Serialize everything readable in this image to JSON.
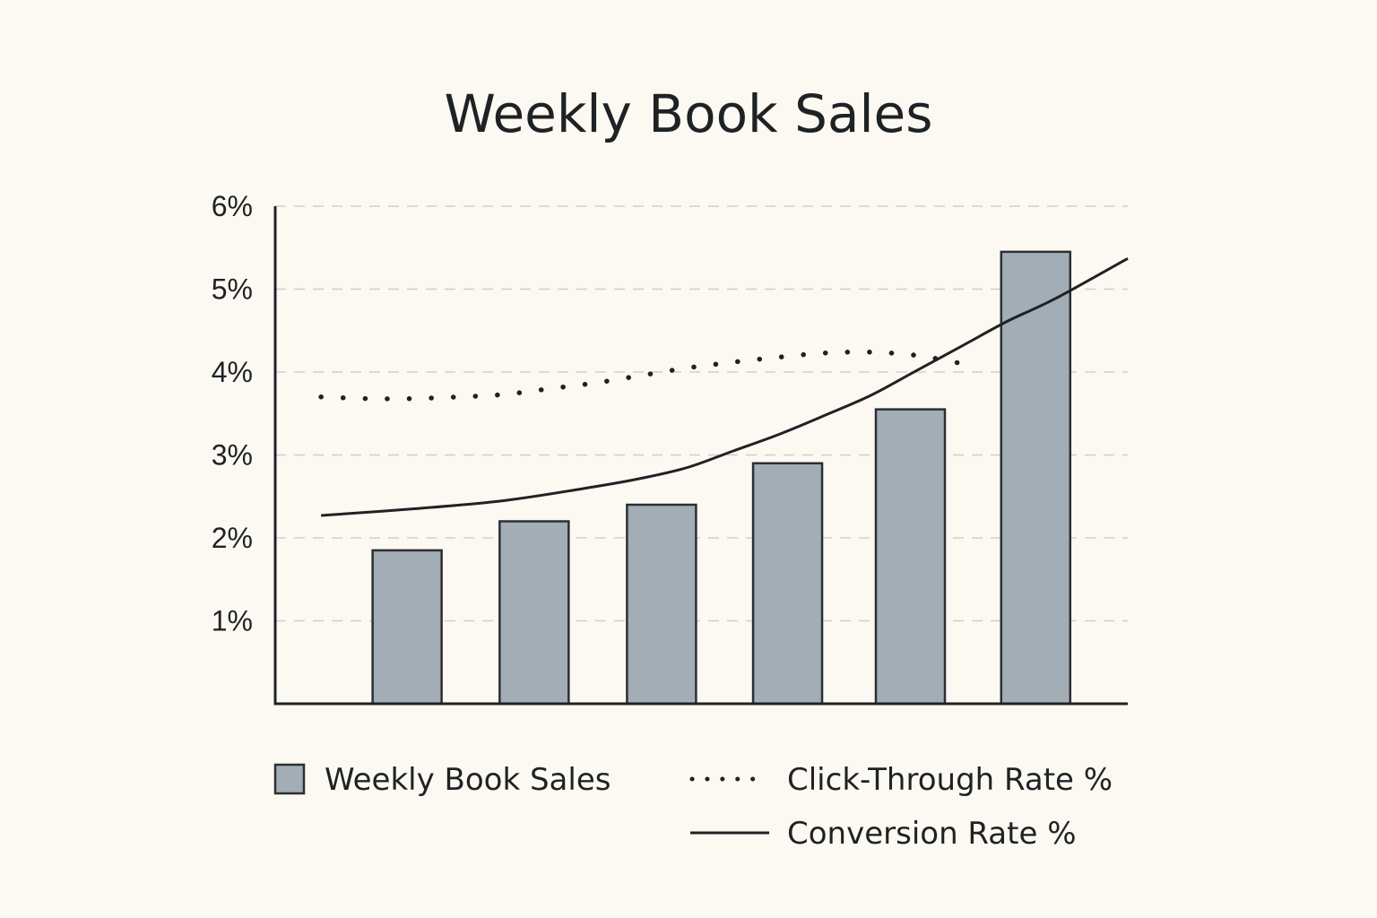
{
  "chart_data": {
    "type": "bar",
    "title": "Weekly Book Sales",
    "xlabel": "",
    "ylabel": "",
    "ylim": [
      0,
      6
    ],
    "yticks": [
      {
        "value": 1,
        "label": "1%"
      },
      {
        "value": 2,
        "label": "2%"
      },
      {
        "value": 3,
        "label": "3%"
      },
      {
        "value": 4,
        "label": "4%"
      },
      {
        "value": 5,
        "label": "5%"
      },
      {
        "value": 6,
        "label": "6%"
      }
    ],
    "grid": true,
    "bar_series": {
      "name": "Weekly Book Sales",
      "values": [
        1.85,
        2.2,
        2.4,
        2.9,
        3.55,
        5.45
      ],
      "color": "#a2adb5"
    },
    "line_series": [
      {
        "name": "Click-Through Rate %",
        "style": "dotted",
        "color": "#1f2224",
        "x": [
          0.5,
          1.0,
          1.5,
          2.0,
          2.5,
          3.0,
          3.5,
          4.0,
          4.5,
          5.0,
          5.5,
          6.0,
          6.5,
          7.0,
          7.5
        ],
        "y": [
          3.7,
          3.68,
          3.68,
          3.7,
          3.73,
          3.8,
          3.87,
          3.96,
          4.05,
          4.12,
          4.18,
          4.23,
          4.24,
          4.2,
          4.1
        ]
      },
      {
        "name": "Conversion Rate %",
        "style": "solid",
        "color": "#1f2224",
        "x": [
          0.5,
          1.5,
          2.5,
          3.5,
          4.0,
          4.5,
          5.0,
          5.5,
          6.0,
          6.5,
          7.0,
          7.5,
          8.0,
          8.5,
          9.3
        ],
        "y": [
          2.27,
          2.35,
          2.45,
          2.62,
          2.72,
          2.85,
          3.05,
          3.25,
          3.48,
          3.72,
          4.02,
          4.32,
          4.62,
          4.88,
          5.37
        ]
      }
    ],
    "legend": {
      "position": "bottom",
      "entries": [
        {
          "label": "Weekly Book Sales",
          "kind": "bar"
        },
        {
          "label": "Click-Through Rate %",
          "kind": "dotted"
        },
        {
          "label": "Conversion Rate %",
          "kind": "solid"
        }
      ]
    },
    "colors": {
      "background": "#fcf9f2",
      "ink": "#1f2224",
      "grid": "#cfcfcc",
      "bar_fill": "#a2adb5",
      "bar_stroke": "#2b2f33"
    }
  }
}
